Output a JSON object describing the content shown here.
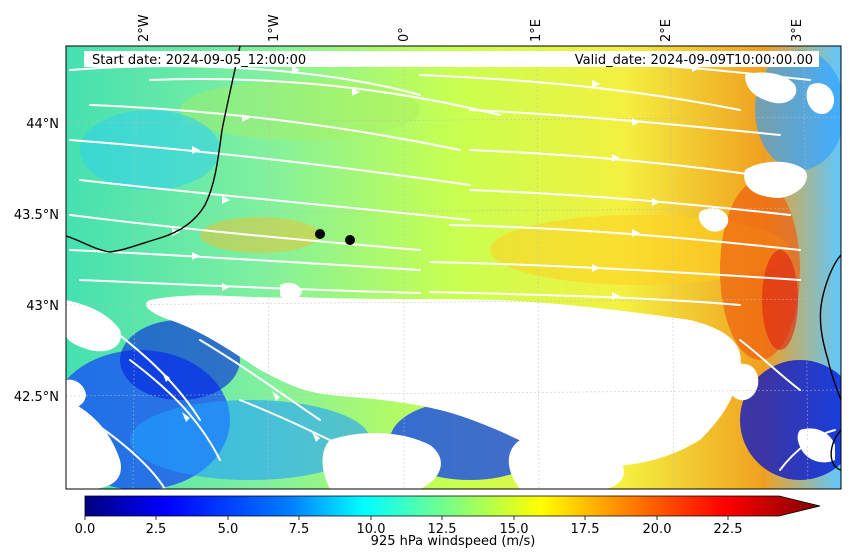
{
  "header": {
    "start_date": "Start date: 2024-09-05_12:00:00",
    "valid_date": "Valid_date: 2024-09-09T10:00:00.00"
  },
  "map": {
    "lon_ticks": [
      "2°W",
      "1°W",
      "0°",
      "1°E",
      "2°E",
      "3°E"
    ],
    "lat_ticks": [
      "44°N",
      "43.5°N",
      "43°N",
      "42.5°N"
    ],
    "markers": 2
  },
  "colorbar": {
    "label": "925 hPa windspeed (m/s)",
    "ticks": [
      "0.0",
      "2.5",
      "5.0",
      "7.5",
      "10.0",
      "12.5",
      "15.0",
      "17.5",
      "20.0",
      "22.5"
    ],
    "colormap": [
      "#00007f",
      "#0000ff",
      "#007fff",
      "#00ffff",
      "#7fff7f",
      "#ffff00",
      "#ff7f00",
      "#ff0000",
      "#7f0000"
    ]
  }
}
